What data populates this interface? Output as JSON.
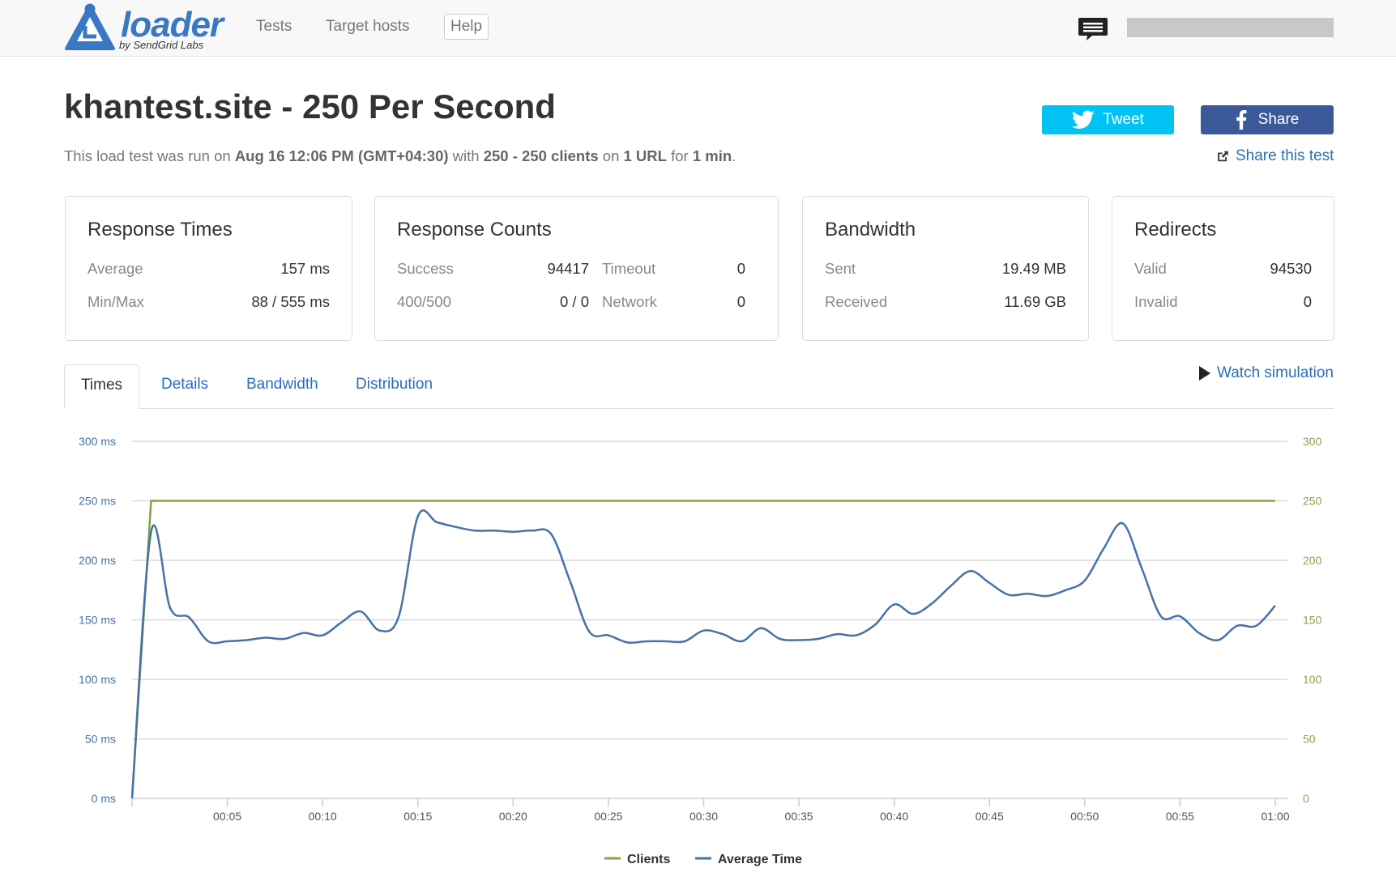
{
  "header": {
    "logo_word": "loader",
    "logo_sub": "by SendGrid Labs",
    "nav": [
      {
        "label": "Tests"
      },
      {
        "label": "Target hosts"
      },
      {
        "label": "Help"
      }
    ],
    "icons": {
      "chat": "chat-bubble-icon"
    }
  },
  "page": {
    "title": "khantest.site - 250 Per Second",
    "subtitle": {
      "prefix": "This load test was run on ",
      "date": "Aug 16 12:06 PM (GMT+04:30)",
      "with": " with ",
      "clients": "250 - 250 clients",
      "on": " on ",
      "urls": "1 URL",
      "for": " for ",
      "duration": "1 min",
      "end": "."
    },
    "tweet_label": "Tweet",
    "share_label": "Share",
    "share_test_label": "Share this test"
  },
  "cards": {
    "response_times": {
      "title": "Response Times",
      "average_label": "Average",
      "average_value": "157 ms",
      "minmax_label": "Min/Max",
      "minmax_value": "88 / 555 ms"
    },
    "response_counts": {
      "title": "Response Counts",
      "success_label": "Success",
      "success_value": "94417",
      "timeout_label": "Timeout",
      "timeout_value": "0",
      "errors_label": "400/500",
      "errors_value": "0 / 0",
      "network_label": "Network",
      "network_value": "0"
    },
    "bandwidth": {
      "title": "Bandwidth",
      "sent_label": "Sent",
      "sent_value": "19.49 MB",
      "received_label": "Received",
      "received_value": "11.69 GB"
    },
    "redirects": {
      "title": "Redirects",
      "valid_label": "Valid",
      "valid_value": "94530",
      "invalid_label": "Invalid",
      "invalid_value": "0"
    }
  },
  "tabs": [
    {
      "label": "Times",
      "active": true
    },
    {
      "label": "Details"
    },
    {
      "label": "Bandwidth"
    },
    {
      "label": "Distribution"
    }
  ],
  "watch_simulation_label": "Watch simulation",
  "colors": {
    "clients": "#86a443",
    "average": "#4572a7",
    "left_axis": "#4572a7",
    "right_axis": "#89a54e"
  },
  "chart_data": {
    "type": "line",
    "x_ticks": [
      "00:05",
      "00:10",
      "00:15",
      "00:20",
      "00:25",
      "00:30",
      "00:35",
      "00:40",
      "00:45",
      "00:50",
      "00:55",
      "01:00"
    ],
    "x_range_seconds": [
      0,
      60
    ],
    "y_left": {
      "ticks": [
        "0 ms",
        "50 ms",
        "100 ms",
        "150 ms",
        "200 ms",
        "250 ms",
        "300 ms"
      ],
      "range": [
        0,
        300
      ]
    },
    "y_right": {
      "ticks": [
        "0",
        "50",
        "100",
        "150",
        "200",
        "250",
        "300"
      ],
      "range": [
        0,
        300
      ]
    },
    "legend_position": "bottom-center",
    "series": [
      {
        "name": "Clients",
        "axis": "right",
        "x": [
          0,
          1,
          60
        ],
        "y": [
          0,
          250,
          250
        ]
      },
      {
        "name": "Average Time",
        "axis": "left",
        "x": [
          0,
          1,
          2,
          3,
          4,
          5,
          6,
          7,
          8,
          9,
          10,
          11,
          12,
          13,
          14,
          15,
          16,
          17,
          18,
          19,
          20,
          21,
          22,
          23,
          24,
          25,
          26,
          27,
          28,
          29,
          30,
          31,
          32,
          33,
          34,
          35,
          36,
          37,
          38,
          39,
          40,
          41,
          42,
          43,
          44,
          45,
          46,
          47,
          48,
          49,
          50,
          51,
          52,
          53,
          54,
          55,
          56,
          57,
          58,
          59,
          60
        ],
        "y": [
          0,
          224,
          160,
          152,
          132,
          132,
          133,
          135,
          134,
          139,
          137,
          148,
          157,
          141,
          153,
          237,
          232,
          228,
          225,
          225,
          224,
          225,
          222,
          182,
          140,
          137,
          131,
          132,
          132,
          132,
          141,
          138,
          132,
          143,
          134,
          133,
          134,
          138,
          137,
          146,
          163,
          155,
          164,
          179,
          191,
          181,
          171,
          172,
          170,
          175,
          183,
          210,
          231,
          193,
          153,
          153,
          139,
          133,
          145,
          145,
          162
        ]
      }
    ]
  }
}
